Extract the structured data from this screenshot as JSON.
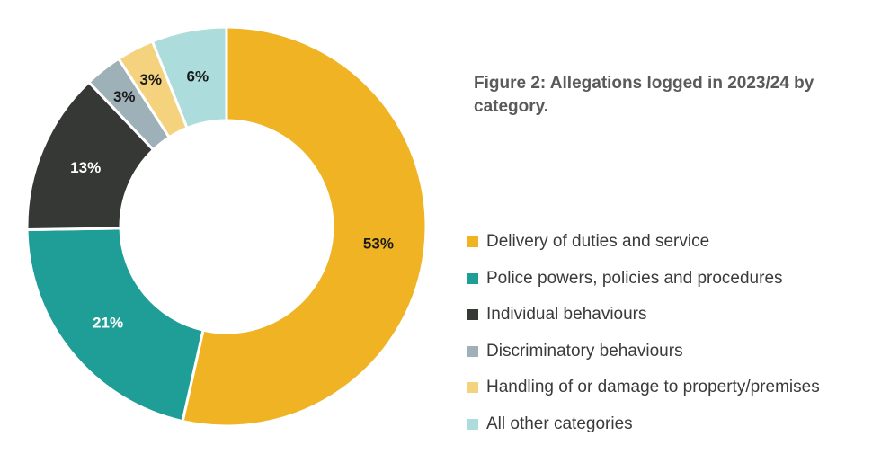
{
  "chart_data": {
    "type": "pie",
    "variant": "donut",
    "title": "Figure 2: Allegations logged in 2023/24 by category.",
    "legend_position": "right",
    "slices": [
      {
        "name": "Delivery of duties and service",
        "value": 53,
        "label": "53%",
        "color": "#F0B323",
        "label_color": "#1a1a1a"
      },
      {
        "name": "Police powers, policies and procedures",
        "value": 21,
        "label": "21%",
        "color": "#1E9E96",
        "label_color": "#ffffff"
      },
      {
        "name": "Individual behaviours",
        "value": 13,
        "label": "13%",
        "color": "#353835",
        "label_color": "#ffffff"
      },
      {
        "name": "Discriminatory behaviours",
        "value": 3,
        "label": "3%",
        "color": "#9EB0B8",
        "label_color": "#1a1a1a"
      },
      {
        "name": "Handling of or damage to property/premises",
        "value": 3,
        "label": "3%",
        "color": "#F5D27D",
        "label_color": "#1a1a1a"
      },
      {
        "name": "All other categories",
        "value": 6,
        "label": "6%",
        "color": "#ACDCDC",
        "label_color": "#1a1a1a"
      }
    ]
  }
}
